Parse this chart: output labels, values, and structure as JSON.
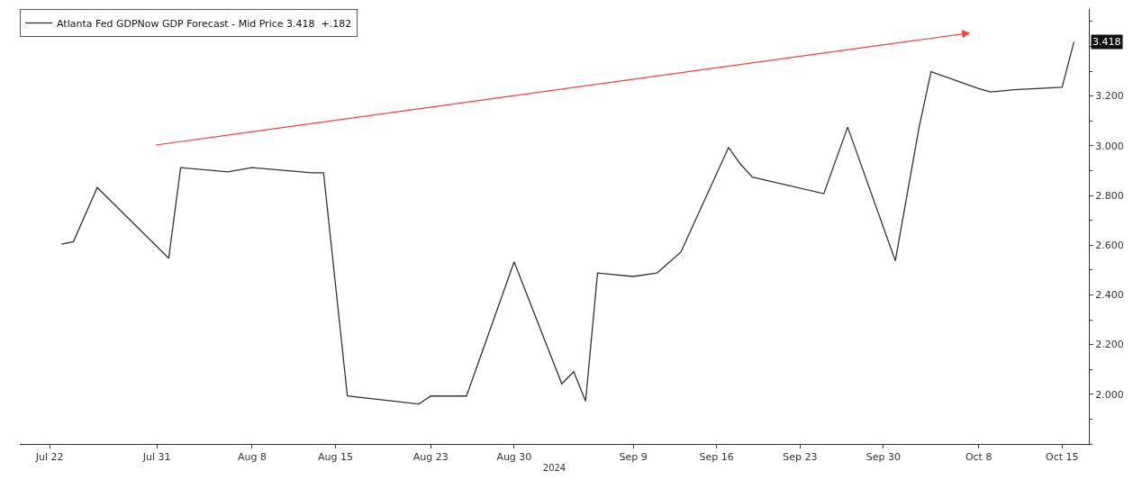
{
  "chart_data": {
    "type": "line",
    "xlabel": "2024",
    "x": [
      "2024-07-23",
      "2024-07-24",
      "2024-07-26",
      "2024-08-01",
      "2024-08-02",
      "2024-08-06",
      "2024-08-08",
      "2024-08-13",
      "2024-08-14",
      "2024-08-16",
      "2024-08-22",
      "2024-08-23",
      "2024-08-26",
      "2024-08-30",
      "2024-09-03",
      "2024-09-04",
      "2024-09-05",
      "2024-09-06",
      "2024-09-09",
      "2024-09-11",
      "2024-09-12",
      "2024-09-13",
      "2024-09-17",
      "2024-09-18",
      "2024-09-19",
      "2024-09-25",
      "2024-09-27",
      "2024-10-01",
      "2024-10-03",
      "2024-10-04",
      "2024-10-08",
      "2024-10-09",
      "2024-10-11",
      "2024-10-15",
      "2024-10-16"
    ],
    "series": [
      {
        "name": "Atlanta Fed GDPNow GDP Forecast - Mid Price 3.418  +.182",
        "color": "#333333",
        "values": [
          2.604,
          2.614,
          2.832,
          2.547,
          2.912,
          2.895,
          2.912,
          2.891,
          2.891,
          1.993,
          1.961,
          1.993,
          1.993,
          2.533,
          2.042,
          2.091,
          1.972,
          2.488,
          2.474,
          2.488,
          2.53,
          2.572,
          2.993,
          2.926,
          2.874,
          2.807,
          3.075,
          2.537,
          3.075,
          3.298,
          3.23,
          3.216,
          3.225,
          3.235,
          3.418
        ]
      }
    ],
    "xlim": [
      "2024-07-19T12:00",
      "2024-10-17T06:00"
    ],
    "xticks": [
      {
        "value": "2024-07-22",
        "label": "Jul 22"
      },
      {
        "value": "2024-07-31",
        "label": "Jul 31"
      },
      {
        "value": "2024-08-08",
        "label": "Aug 8"
      },
      {
        "value": "2024-08-15",
        "label": "Aug 15"
      },
      {
        "value": "2024-08-23",
        "label": "Aug 23"
      },
      {
        "value": "2024-08-30",
        "label": "Aug 30"
      },
      {
        "value": "2024-09-09",
        "label": "Sep 9"
      },
      {
        "value": "2024-09-16",
        "label": "Sep 16"
      },
      {
        "value": "2024-09-23",
        "label": "Sep 23"
      },
      {
        "value": "2024-09-30",
        "label": "Sep 30"
      },
      {
        "value": "2024-10-08",
        "label": "Oct 8"
      },
      {
        "value": "2024-10-15",
        "label": "Oct 15"
      }
    ],
    "ylim": [
      1.8,
      3.55
    ],
    "yticks": [
      {
        "value": 2.0,
        "label": "2.000"
      },
      {
        "value": 2.2,
        "label": "2.200"
      },
      {
        "value": 2.4,
        "label": "2.400"
      },
      {
        "value": 2.6,
        "label": "2.600"
      },
      {
        "value": 2.8,
        "label": "2.800"
      },
      {
        "value": 3.0,
        "label": "3.000"
      },
      {
        "value": 3.2,
        "label": "3.200"
      }
    ],
    "annotations": [
      {
        "text": "3.418",
        "x": "2024-10-16",
        "y": 3.418
      }
    ],
    "grid": false,
    "legend": "top left",
    "marker": "none",
    "line_style": "solid"
  }
}
